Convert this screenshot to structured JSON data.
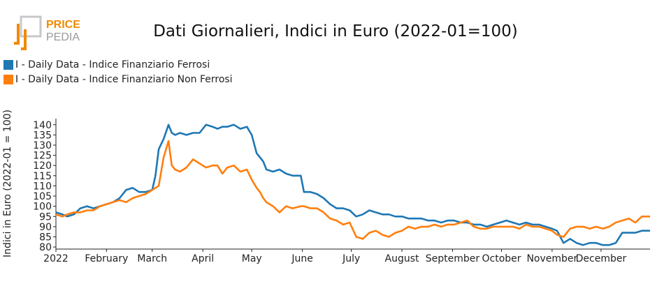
{
  "brand": {
    "line1": "PRICE",
    "line2": "PEDIA",
    "accent": "#f08a00",
    "grey": "#9a9a9a"
  },
  "chart_data": {
    "type": "line",
    "title": "Dati Giornalieri, Indici in Euro (2022-01=100)",
    "ylabel": "Indici in Euro (2022-01 = 100)",
    "xlabel": "",
    "ylim": [
      79,
      143
    ],
    "y_ticks": [
      80,
      85,
      90,
      95,
      100,
      105,
      110,
      115,
      120,
      125,
      130,
      135,
      140
    ],
    "x_range": [
      "2022-01-01",
      "2022-12-31"
    ],
    "x_ticks": [
      {
        "date": "2022-01-01",
        "label": "2022"
      },
      {
        "date": "2022-02-01",
        "label": "February"
      },
      {
        "date": "2022-03-01",
        "label": "March"
      },
      {
        "date": "2022-04-01",
        "label": "April"
      },
      {
        "date": "2022-05-01",
        "label": "May"
      },
      {
        "date": "2022-06-01",
        "label": "June"
      },
      {
        "date": "2022-07-01",
        "label": "July"
      },
      {
        "date": "2022-08-01",
        "label": "August"
      },
      {
        "date": "2022-09-01",
        "label": "September"
      },
      {
        "date": "2022-10-01",
        "label": "October"
      },
      {
        "date": "2022-11-01",
        "label": "November"
      },
      {
        "date": "2022-12-01",
        "label": "December"
      }
    ],
    "grid": false,
    "legend_position": "top-left",
    "series": [
      {
        "name": "I - Daily Data - Indice Finanziario Ferrosi",
        "color": "#1f77b4",
        "x": [
          "2022-01-01",
          "2022-01-05",
          "2022-01-08",
          "2022-01-12",
          "2022-01-16",
          "2022-01-20",
          "2022-01-24",
          "2022-01-28",
          "2022-02-01",
          "2022-02-05",
          "2022-02-09",
          "2022-02-13",
          "2022-02-17",
          "2022-02-21",
          "2022-02-25",
          "2022-03-01",
          "2022-03-03",
          "2022-03-05",
          "2022-03-08",
          "2022-03-11",
          "2022-03-13",
          "2022-03-15",
          "2022-03-18",
          "2022-03-22",
          "2022-03-26",
          "2022-03-30",
          "2022-04-03",
          "2022-04-07",
          "2022-04-10",
          "2022-04-13",
          "2022-04-16",
          "2022-04-20",
          "2022-04-24",
          "2022-04-28",
          "2022-05-01",
          "2022-05-04",
          "2022-05-06",
          "2022-05-08",
          "2022-05-10",
          "2022-05-14",
          "2022-05-18",
          "2022-05-22",
          "2022-05-26",
          "2022-05-31",
          "2022-06-02",
          "2022-06-06",
          "2022-06-10",
          "2022-06-14",
          "2022-06-18",
          "2022-06-22",
          "2022-06-26",
          "2022-06-30",
          "2022-07-04",
          "2022-07-08",
          "2022-07-12",
          "2022-07-16",
          "2022-07-20",
          "2022-07-24",
          "2022-07-28",
          "2022-08-01",
          "2022-08-05",
          "2022-08-09",
          "2022-08-13",
          "2022-08-17",
          "2022-08-21",
          "2022-08-25",
          "2022-08-29",
          "2022-09-02",
          "2022-09-06",
          "2022-09-10",
          "2022-09-14",
          "2022-09-18",
          "2022-09-22",
          "2022-09-26",
          "2022-09-30",
          "2022-10-04",
          "2022-10-08",
          "2022-10-12",
          "2022-10-16",
          "2022-10-20",
          "2022-10-24",
          "2022-10-28",
          "2022-11-01",
          "2022-11-04",
          "2022-11-08",
          "2022-11-12",
          "2022-11-16",
          "2022-11-20",
          "2022-11-24",
          "2022-11-28",
          "2022-12-02",
          "2022-12-06",
          "2022-12-10",
          "2022-12-14",
          "2022-12-18",
          "2022-12-22",
          "2022-12-26",
          "2022-12-31"
        ],
        "y": [
          97,
          96,
          95,
          96,
          99,
          100,
          99,
          100,
          101,
          102,
          104,
          108,
          109,
          107,
          107,
          108,
          115,
          128,
          133,
          140,
          136,
          135,
          136,
          135,
          136,
          136,
          140,
          139,
          138,
          139,
          139,
          140,
          138,
          139,
          135,
          126,
          124,
          122,
          118,
          117,
          118,
          116,
          115,
          115,
          107,
          107,
          106,
          104,
          101,
          99,
          99,
          98,
          95,
          96,
          98,
          97,
          96,
          96,
          95,
          95,
          94,
          94,
          94,
          93,
          93,
          92,
          93,
          93,
          92,
          92,
          91,
          91,
          90,
          91,
          92,
          93,
          92,
          91,
          92,
          91,
          91,
          90,
          89,
          88,
          82,
          84,
          82,
          81,
          82,
          82,
          81,
          81,
          82,
          87,
          87,
          87,
          88,
          88
        ]
      },
      {
        "name": "I - Daily Data - Indice Finanziario Non Ferrosi",
        "color": "#ff7f0e",
        "x": [
          "2022-01-01",
          "2022-01-05",
          "2022-01-08",
          "2022-01-12",
          "2022-01-16",
          "2022-01-20",
          "2022-01-24",
          "2022-01-28",
          "2022-02-01",
          "2022-02-05",
          "2022-02-09",
          "2022-02-13",
          "2022-02-17",
          "2022-02-21",
          "2022-02-25",
          "2022-03-01",
          "2022-03-03",
          "2022-03-05",
          "2022-03-08",
          "2022-03-11",
          "2022-03-13",
          "2022-03-15",
          "2022-03-18",
          "2022-03-22",
          "2022-03-26",
          "2022-03-30",
          "2022-04-03",
          "2022-04-07",
          "2022-04-10",
          "2022-04-13",
          "2022-04-16",
          "2022-04-20",
          "2022-04-24",
          "2022-04-28",
          "2022-05-01",
          "2022-05-04",
          "2022-05-06",
          "2022-05-08",
          "2022-05-10",
          "2022-05-14",
          "2022-05-18",
          "2022-05-22",
          "2022-05-26",
          "2022-05-31",
          "2022-06-02",
          "2022-06-06",
          "2022-06-10",
          "2022-06-14",
          "2022-06-18",
          "2022-06-22",
          "2022-06-26",
          "2022-06-30",
          "2022-07-04",
          "2022-07-08",
          "2022-07-12",
          "2022-07-16",
          "2022-07-20",
          "2022-07-24",
          "2022-07-28",
          "2022-08-01",
          "2022-08-05",
          "2022-08-09",
          "2022-08-13",
          "2022-08-17",
          "2022-08-21",
          "2022-08-25",
          "2022-08-29",
          "2022-09-02",
          "2022-09-06",
          "2022-09-10",
          "2022-09-14",
          "2022-09-18",
          "2022-09-22",
          "2022-09-26",
          "2022-09-30",
          "2022-10-04",
          "2022-10-08",
          "2022-10-12",
          "2022-10-16",
          "2022-10-20",
          "2022-10-24",
          "2022-10-28",
          "2022-11-01",
          "2022-11-04",
          "2022-11-08",
          "2022-11-12",
          "2022-11-16",
          "2022-11-20",
          "2022-11-24",
          "2022-11-28",
          "2022-12-02",
          "2022-12-06",
          "2022-12-10",
          "2022-12-14",
          "2022-12-18",
          "2022-12-22",
          "2022-12-26",
          "2022-12-31"
        ],
        "y": [
          96,
          95,
          96,
          97,
          97,
          98,
          98,
          100,
          101,
          102,
          103,
          102,
          104,
          105,
          106,
          108,
          109,
          110,
          124,
          132,
          120,
          118,
          117,
          119,
          123,
          121,
          119,
          120,
          120,
          116,
          119,
          120,
          117,
          118,
          113,
          109,
          107,
          104,
          102,
          100,
          97,
          100,
          99,
          100,
          100,
          99,
          99,
          97,
          94,
          93,
          91,
          92,
          85,
          84,
          87,
          88,
          86,
          85,
          87,
          88,
          90,
          89,
          90,
          90,
          91,
          90,
          91,
          91,
          92,
          93,
          90,
          89,
          89,
          90,
          90,
          90,
          90,
          89,
          91,
          90,
          90,
          89,
          88,
          86,
          85,
          89,
          90,
          90,
          89,
          90,
          89,
          90,
          92,
          93,
          94,
          92,
          95,
          95
        ]
      }
    ]
  }
}
